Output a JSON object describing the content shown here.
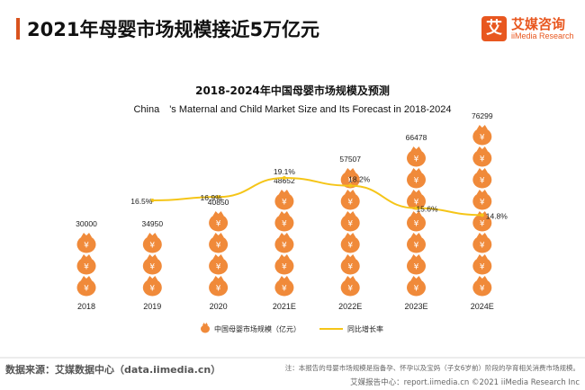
{
  "header": {
    "title": "2021年母婴市场规模接近5万亿元",
    "brand_cn": "艾媒咨询",
    "brand_en": "iiMedia Research",
    "brand_mark": "艾"
  },
  "chart_data": {
    "type": "bar",
    "title": "2018-2024年中国母婴市场规模及预测",
    "subtitle": "China　's Maternal and Child Market Size and Its Forecast in 2018-2024",
    "categories": [
      "2018",
      "2019",
      "2020",
      "2021E",
      "2022E",
      "2023E",
      "2024E"
    ],
    "series": [
      {
        "name": "中国母婴市场规模（亿元）",
        "type": "bar",
        "values": [
          30000,
          34950,
          40850,
          48652,
          57507,
          66478,
          76299
        ],
        "labels": [
          "30000",
          "34950",
          "40850",
          "48652",
          "57507",
          "66478",
          "76299"
        ],
        "color": "#f08a3a",
        "icon": "money-bag-icon",
        "icon_glyph": "¥"
      },
      {
        "name": "同比增长率",
        "type": "line",
        "values": [
          null,
          16.5,
          16.9,
          19.1,
          18.2,
          15.6,
          14.8
        ],
        "labels": [
          "",
          "16.5%",
          "16.9%",
          "19.1%",
          "18.2%",
          "15.6%",
          "14.8%"
        ],
        "color": "#f5c518"
      }
    ],
    "legend_position": "bottom",
    "grid": false
  },
  "footer": {
    "source": "数据来源：艾媒数据中心（data.iimedia.cn）",
    "note": "注：本报告的母婴市场规模是指备孕、怀孕以及宝妈（子女6岁前）阶段的孕育相关消费市场规模。",
    "report_site": "艾媒报告中心：report.iimedia.cn   ©2021  iiMedia Research  Inc"
  }
}
